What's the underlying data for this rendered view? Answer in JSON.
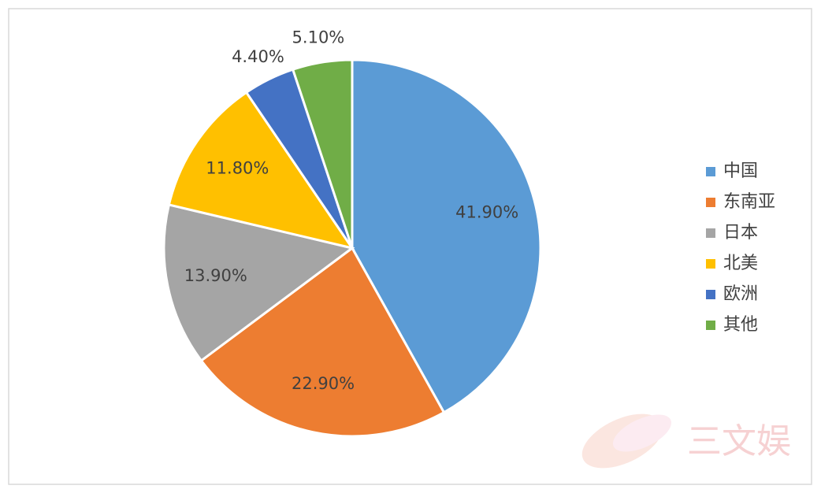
{
  "chart_data": {
    "type": "pie",
    "categories": [
      "中国",
      "东南亚",
      "日本",
      "北美",
      "欧洲",
      "其他"
    ],
    "values": [
      41.9,
      22.9,
      13.9,
      11.8,
      4.4,
      5.1
    ],
    "value_labels": [
      "41.90%",
      "22.90%",
      "13.90%",
      "11.80%",
      "4.40%",
      "5.10%"
    ],
    "colors": [
      "#5b9bd5",
      "#ed7d31",
      "#a5a5a5",
      "#ffc000",
      "#4472c4",
      "#70ad47"
    ],
    "legend": "right"
  },
  "watermark": "三文娱"
}
